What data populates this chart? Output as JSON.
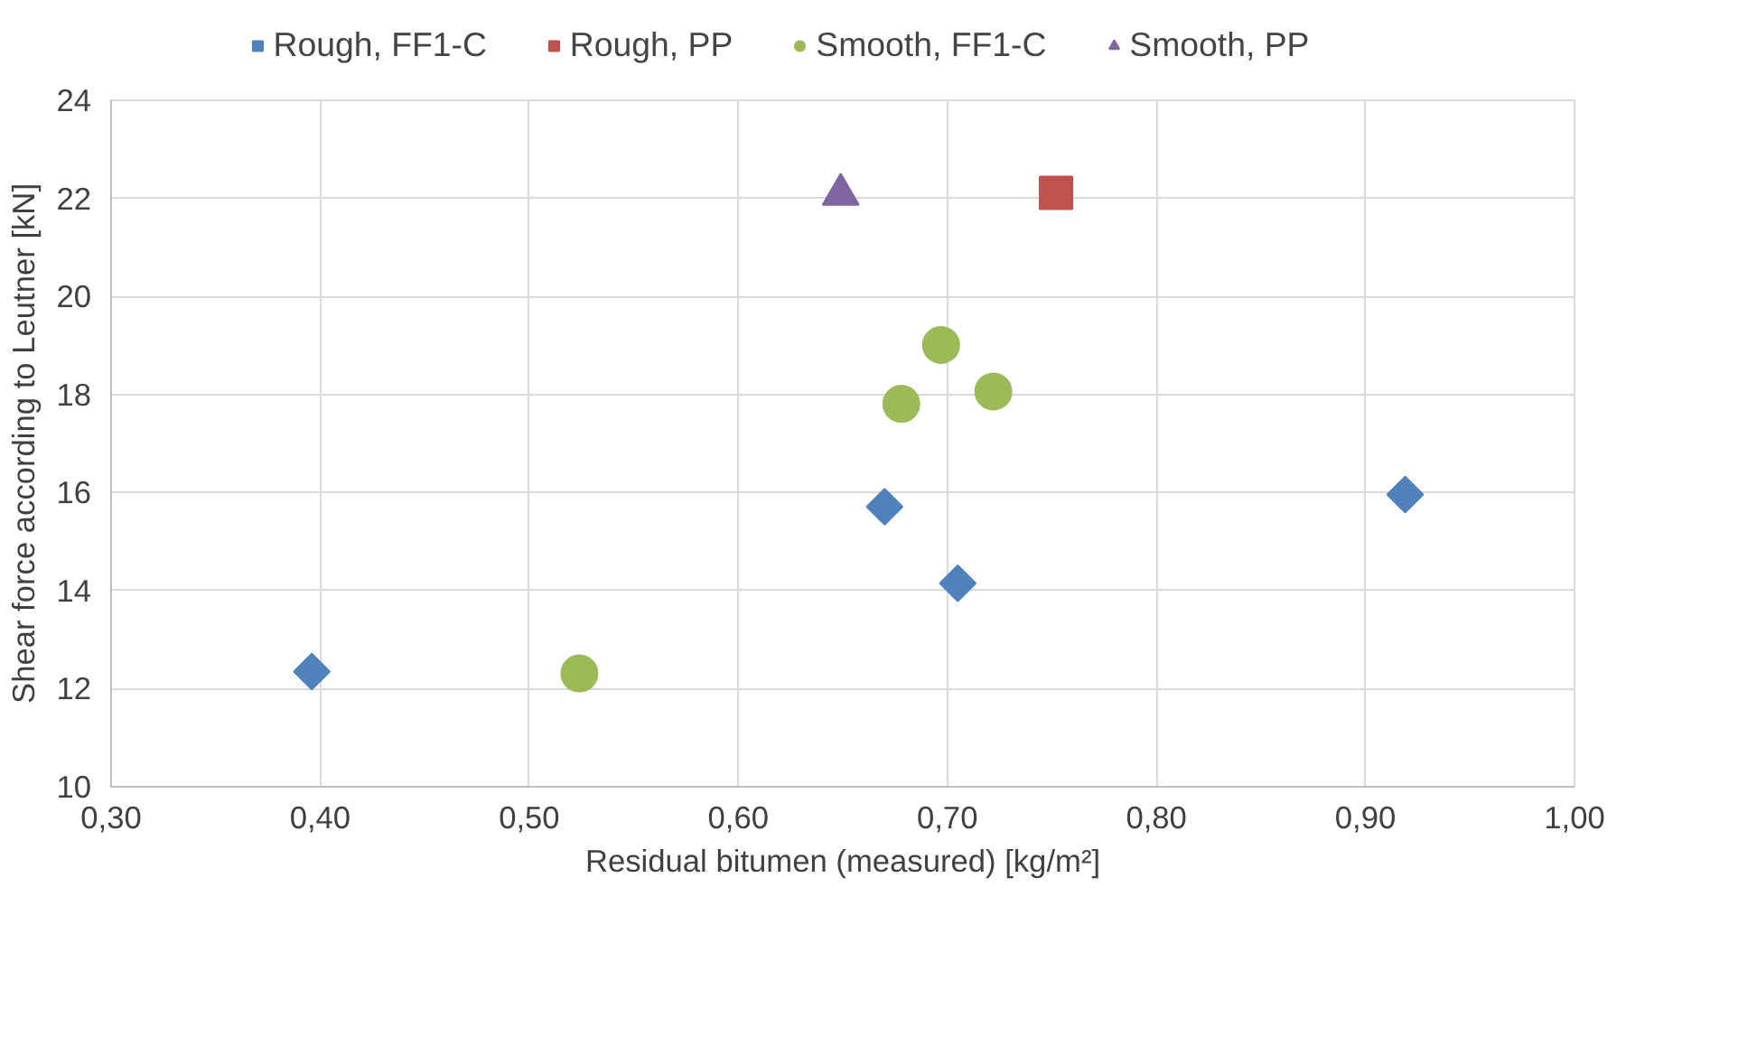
{
  "chart_data": {
    "type": "scatter",
    "xlabel": "Residual bitumen (measured) [kg/m²]",
    "ylabel": "Shear force according to Leutner [kN]",
    "xlim": [
      0.3,
      1.0
    ],
    "xticks": [
      {
        "value": 0.3,
        "label": "0,30"
      },
      {
        "value": 0.4,
        "label": "0,40"
      },
      {
        "value": 0.5,
        "label": "0,50"
      },
      {
        "value": 0.6,
        "label": "0,60"
      },
      {
        "value": 0.7,
        "label": "0,70"
      },
      {
        "value": 0.8,
        "label": "0,80"
      },
      {
        "value": 0.9,
        "label": "0,90"
      },
      {
        "value": 1.0,
        "label": "1,00"
      }
    ],
    "ylim": [
      10,
      24
    ],
    "yticks": [
      10,
      12,
      14,
      16,
      18,
      20,
      22,
      24
    ],
    "grid": true,
    "legend": "top",
    "series": [
      {
        "name": "Rough, FF1-C",
        "color": "#4f81bd",
        "marker": "diamond",
        "x": [
          0.396,
          0.67,
          0.705,
          0.919
        ],
        "values": [
          12.35,
          15.71,
          14.15,
          15.96
        ]
      },
      {
        "name": "Rough, PP",
        "color": "#c0504d",
        "marker": "square",
        "x": [
          0.752
        ],
        "values": [
          22.11
        ]
      },
      {
        "name": "Smooth, FF1-C",
        "color": "#9bbb59",
        "marker": "circle",
        "x": [
          0.524,
          0.678,
          0.697,
          0.722
        ],
        "values": [
          12.31,
          17.81,
          19.01,
          18.06
        ]
      },
      {
        "name": "Smooth, PP",
        "color": "#8064a2",
        "marker": "triangle",
        "x": [
          0.649
        ],
        "values": [
          22.08
        ]
      }
    ]
  }
}
